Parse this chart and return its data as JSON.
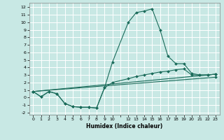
{
  "xlabel": "Humidex (Indice chaleur)",
  "background_color": "#c8e8e4",
  "grid_color": "#ffffff",
  "line_color": "#1a6b5a",
  "xlim": [
    -0.5,
    23.5
  ],
  "ylim": [
    -2.3,
    12.6
  ],
  "xtick_positions": [
    0,
    1,
    2,
    3,
    4,
    5,
    6,
    7,
    8,
    9,
    10,
    11,
    12,
    13,
    14,
    15,
    16,
    17,
    18,
    19,
    20,
    21,
    22,
    23
  ],
  "xtick_labels": [
    "0",
    "1",
    "2",
    "3",
    "4",
    "5",
    "6",
    "7",
    "8",
    "9",
    "10",
    "",
    "12",
    "13",
    "14",
    "15",
    "16",
    "17",
    "18",
    "19",
    "20",
    "21",
    "22",
    "23"
  ],
  "yticks": [
    -2,
    -1,
    0,
    1,
    2,
    3,
    4,
    5,
    6,
    7,
    8,
    9,
    10,
    11,
    12
  ],
  "line1_x": [
    0,
    1,
    2,
    3,
    4,
    5,
    6,
    7,
    8,
    9,
    10,
    12,
    13,
    14,
    15,
    16,
    17,
    18,
    19,
    20,
    21,
    22,
    23
  ],
  "line1_y": [
    0.8,
    0.1,
    0.8,
    0.5,
    -0.8,
    -1.2,
    -1.3,
    -1.3,
    -1.4,
    1.3,
    4.7,
    10.0,
    11.3,
    11.5,
    11.8,
    9.0,
    5.5,
    4.5,
    4.5,
    3.2,
    3.0,
    3.0,
    3.1
  ],
  "line2_x": [
    0,
    1,
    2,
    3,
    4,
    5,
    6,
    7,
    8,
    9,
    10,
    12,
    13,
    14,
    15,
    16,
    17,
    18,
    19,
    20,
    21,
    22,
    23
  ],
  "line2_y": [
    0.8,
    0.1,
    0.8,
    0.5,
    -0.8,
    -1.2,
    -1.3,
    -1.3,
    -1.4,
    1.3,
    2.0,
    2.5,
    2.8,
    3.0,
    3.2,
    3.4,
    3.5,
    3.7,
    3.8,
    3.0,
    3.0,
    3.0,
    3.1
  ],
  "line3_x": [
    0,
    23
  ],
  "line3_y": [
    0.8,
    3.1
  ],
  "line4_x": [
    0,
    23
  ],
  "line4_y": [
    0.8,
    2.7
  ]
}
